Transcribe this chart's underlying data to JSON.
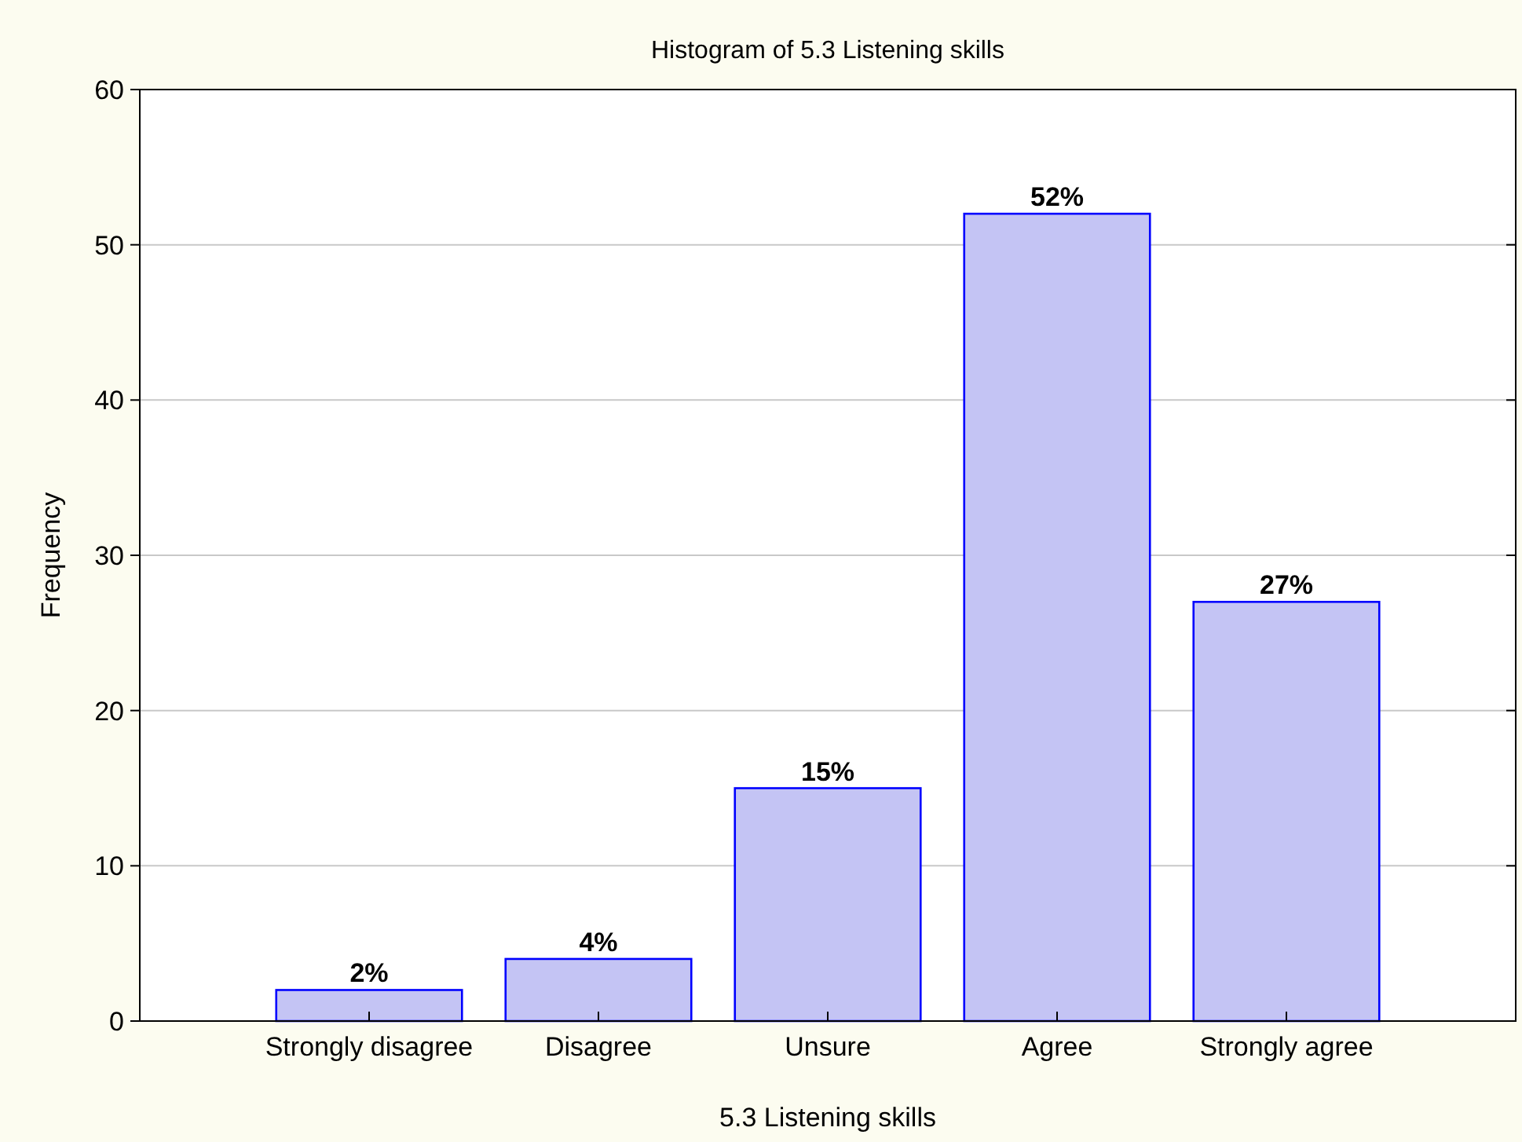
{
  "chart_data": {
    "type": "bar",
    "title": "Histogram of 5.3 Listening skills",
    "xlabel": "5.3 Listening skills",
    "ylabel": "Frequency",
    "categories": [
      "Strongly disagree",
      "Disagree",
      "Unsure",
      "Agree",
      "Strongly agree"
    ],
    "values": [
      2,
      4,
      15,
      52,
      27
    ],
    "value_labels": [
      "2%",
      "4%",
      "15%",
      "52%",
      "27%"
    ],
    "color": "#c4c4f4",
    "ylim": [
      0,
      60
    ],
    "yticks": [
      0,
      10,
      20,
      30,
      40,
      50,
      60
    ],
    "grid": "y"
  }
}
